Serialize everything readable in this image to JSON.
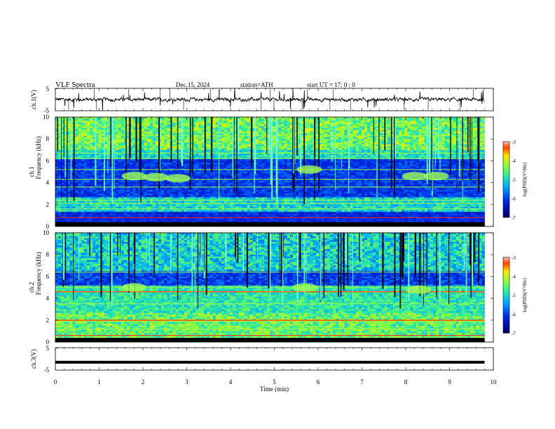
{
  "header": {
    "title": "VLF  Spectra",
    "date": "Dec.15, 2024",
    "station": "station=ATH",
    "start_ut": "start  UT  =    17: 0   : 0"
  },
  "chart_data": [
    {
      "type": "line",
      "panel": "ch1-waveform",
      "ylabel": "ch.1(V)",
      "ylim": [
        -5,
        5
      ],
      "yticks": [
        "5",
        "-5"
      ],
      "x_range_min": [
        0,
        9.8
      ],
      "description_level": "mean about 0 V with occasional spikes",
      "color": "#000000"
    },
    {
      "type": "heatmap",
      "panel": "ch1-spectrogram",
      "ylabel_line1": "ch.1",
      "ylabel_line2": "Frequency (kHz)",
      "ylim": [
        0,
        10
      ],
      "yticks": [
        "0",
        "2",
        "4",
        "6",
        "8",
        "10"
      ],
      "x_range_min": [
        0,
        9.8
      ],
      "colorbar": {
        "label": "log(PSD)(V²/Hz)",
        "range": [
          -7,
          -3
        ],
        "ticks": [
          "-3",
          "-4",
          "-5",
          "-6",
          "-7"
        ]
      },
      "bands_khz": [
        0.3,
        0.8,
        1.6,
        2.1,
        2.4,
        3.6,
        4.3,
        5.2,
        6.2,
        6.7,
        8.3
      ]
    },
    {
      "type": "heatmap",
      "panel": "ch2-spectrogram",
      "ylabel_line1": "ch.2",
      "ylabel_line2": "Frequency (kHz)",
      "ylim": [
        0,
        10
      ],
      "yticks": [
        "0",
        "2",
        "4",
        "6",
        "8",
        "10"
      ],
      "x_range_min": [
        0,
        9.8
      ],
      "colorbar": {
        "label": "log(PSD)(V²/Hz)",
        "range": [
          -7,
          -3
        ],
        "ticks": [
          "-3",
          "-4",
          "-5",
          "-6",
          "-7"
        ]
      },
      "bands_khz": [
        0.6,
        1.2,
        1.9,
        2.0,
        3.5,
        4.6,
        5.0,
        6.4
      ]
    },
    {
      "type": "line",
      "panel": "ch3-waveform",
      "ylabel": "ch.3(V)",
      "ylim": [
        -5,
        5
      ],
      "yticks": [
        "5",
        "-5"
      ],
      "x_range_min": [
        0,
        9.8
      ],
      "constant_value": -1.5,
      "color": "#000000"
    }
  ],
  "x_axis": {
    "label": "Time  (min)",
    "ticks": [
      "0",
      "1",
      "2",
      "3",
      "4",
      "5",
      "6",
      "7",
      "8",
      "9",
      "10"
    ],
    "range": [
      0,
      10
    ]
  }
}
